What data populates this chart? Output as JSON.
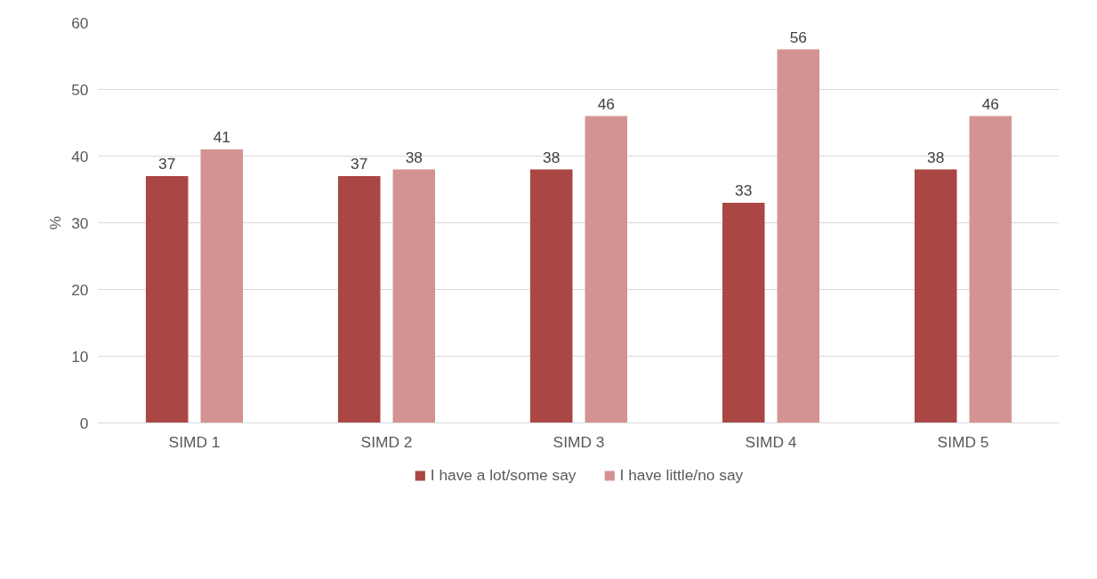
{
  "chart_data": {
    "type": "bar",
    "ylabel": "%",
    "categories": [
      "SIMD 1",
      "SIMD 2",
      "SIMD 3",
      "SIMD 4",
      "SIMD 5"
    ],
    "series": [
      {
        "name": "I have a lot/some say",
        "color": "#aa4643",
        "values": [
          37,
          37,
          38,
          33,
          38
        ]
      },
      {
        "name": "I have little/no say",
        "color": "#d39392",
        "values": [
          41,
          38,
          46,
          56,
          46
        ]
      }
    ],
    "ylim": [
      0,
      60
    ],
    "yticks": [
      0,
      10,
      20,
      30,
      40,
      50,
      60
    ],
    "grid": "y",
    "legend": "bottom",
    "data_labels": true
  }
}
